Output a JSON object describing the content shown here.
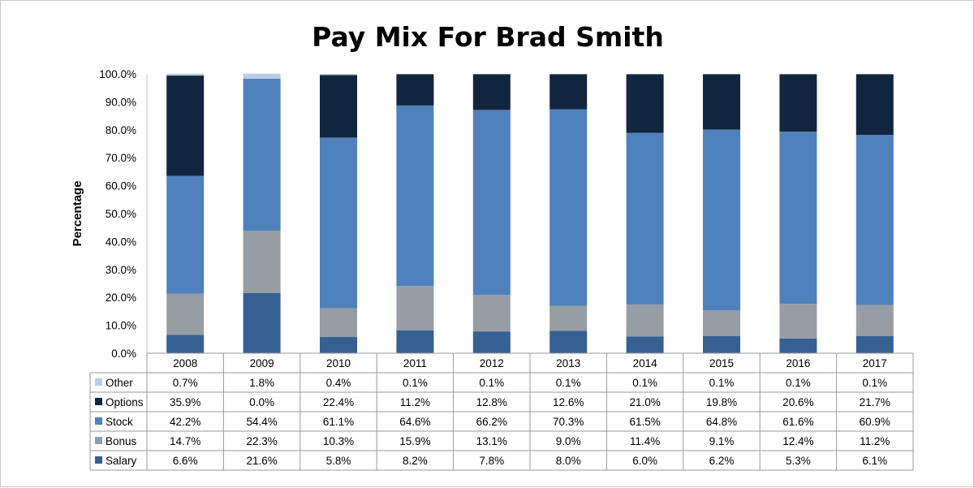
{
  "chart_data": {
    "type": "bar",
    "stacked": true,
    "title": "Pay Mix For Brad Smith",
    "ylabel": "Percentage",
    "xlabel": "",
    "ylim": [
      0,
      100
    ],
    "yticks": [
      "0.0%",
      "10.0%",
      "20.0%",
      "30.0%",
      "40.0%",
      "50.0%",
      "60.0%",
      "70.0%",
      "80.0%",
      "90.0%",
      "100.0%"
    ],
    "categories": [
      "2008",
      "2009",
      "2010",
      "2011",
      "2012",
      "2013",
      "2014",
      "2015",
      "2016",
      "2017"
    ],
    "series": [
      {
        "name": "Salary",
        "color": "#376092",
        "values": [
          6.6,
          21.6,
          5.8,
          8.2,
          7.8,
          8.0,
          6.0,
          6.2,
          5.3,
          6.1
        ],
        "labels": [
          "6.6%",
          "21.6%",
          "5.8%",
          "8.2%",
          "7.8%",
          "8.0%",
          "6.0%",
          "6.2%",
          "5.3%",
          "6.1%"
        ]
      },
      {
        "name": "Bonus",
        "color": "#969ea3",
        "values": [
          14.7,
          22.3,
          10.3,
          15.9,
          13.1,
          9.0,
          11.4,
          9.1,
          12.4,
          11.2
        ],
        "labels": [
          "14.7%",
          "22.3%",
          "10.3%",
          "15.9%",
          "13.1%",
          "9.0%",
          "11.4%",
          "9.1%",
          "12.4%",
          "11.2%"
        ]
      },
      {
        "name": "Stock",
        "color": "#4f81bd",
        "values": [
          42.2,
          54.4,
          61.1,
          64.6,
          66.2,
          70.3,
          61.5,
          64.8,
          61.6,
          60.9
        ],
        "labels": [
          "42.2%",
          "54.4%",
          "61.1%",
          "64.6%",
          "66.2%",
          "70.3%",
          "61.5%",
          "64.8%",
          "61.6%",
          "60.9%"
        ]
      },
      {
        "name": "Options",
        "color": "#12253f",
        "values": [
          35.9,
          0.0,
          22.4,
          11.2,
          12.8,
          12.6,
          21.0,
          19.8,
          20.6,
          21.7
        ],
        "labels": [
          "35.9%",
          "0.0%",
          "22.4%",
          "11.2%",
          "12.8%",
          "12.6%",
          "21.0%",
          "19.8%",
          "20.6%",
          "21.7%"
        ]
      },
      {
        "name": "Other",
        "color": "#b9cde5",
        "values": [
          0.7,
          1.8,
          0.4,
          0.1,
          0.1,
          0.1,
          0.1,
          0.1,
          0.1,
          0.1
        ],
        "labels": [
          "0.7%",
          "1.8%",
          "0.4%",
          "0.1%",
          "0.1%",
          "0.1%",
          "0.1%",
          "0.1%",
          "0.1%",
          "0.1%"
        ]
      }
    ],
    "table_row_order": [
      "Other",
      "Options",
      "Stock",
      "Bonus",
      "Salary"
    ],
    "grid": false,
    "legend": "data-table"
  }
}
